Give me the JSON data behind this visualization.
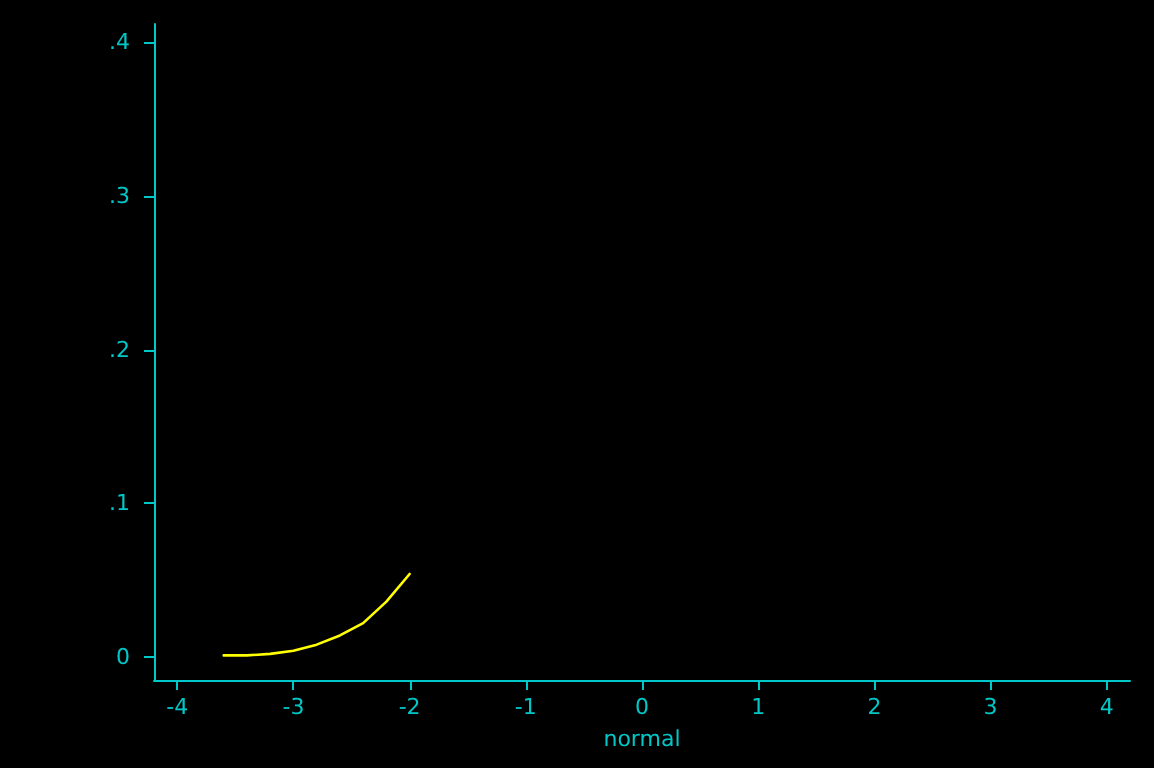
{
  "chart_data": {
    "type": "line",
    "xlabel": "normal",
    "x": [
      -3.6,
      -3.4,
      -3.2,
      -3.0,
      -2.8,
      -2.6,
      -2.4,
      -2.2,
      -2.0
    ],
    "series": [
      {
        "color": "#ffff00",
        "values": [
          0.001,
          0.001,
          0.002,
          0.004,
          0.008,
          0.014,
          0.022,
          0.036,
          0.054
        ]
      }
    ],
    "xlim": [
      -4.2,
      4.2
    ],
    "xticks": [
      -4,
      -3,
      -2,
      -1,
      0,
      1,
      2,
      3,
      4
    ],
    "ylim": [
      -0.015,
      0.412
    ],
    "yticks": [
      0,
      {
        "value": 0.1,
        "label": ".1"
      },
      {
        "value": 0.2,
        "label": ".2"
      },
      {
        "value": 0.3,
        "label": ".3"
      },
      {
        "value": 0.4,
        "label": ".4"
      }
    ],
    "grid": false,
    "marker": "none",
    "line_style": "solid"
  }
}
